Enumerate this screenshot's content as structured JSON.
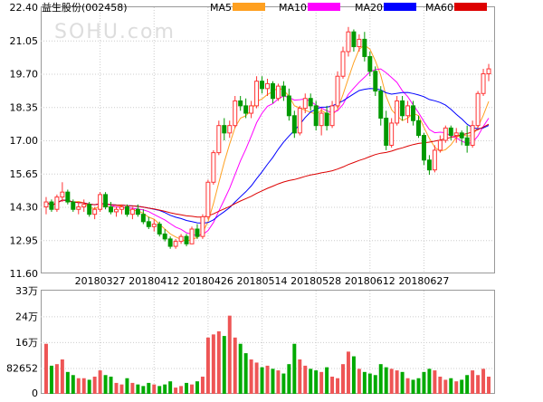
{
  "chart_data": {
    "type": "candlestick",
    "title": "益生股份(002458)",
    "watermark": "SOHU.com",
    "price_axis": {
      "ylim": [
        11.6,
        22.4
      ],
      "tick_labels": [
        "22.40",
        "21.05",
        "19.70",
        "18.35",
        "17.00",
        "15.65",
        "14.30",
        "12.95",
        "11.60"
      ]
    },
    "volume_axis": {
      "ylim": [
        0,
        330000
      ],
      "tick_labels": [
        "33万",
        "24万",
        "16万",
        "82652",
        "0"
      ],
      "tick_values": [
        330000,
        247956,
        165304,
        82652,
        0
      ]
    },
    "x_tick_labels": [
      {
        "label": "20180327",
        "index": 10
      },
      {
        "label": "20180412",
        "index": 20
      },
      {
        "label": "20180426",
        "index": 30
      },
      {
        "label": "20180514",
        "index": 40
      },
      {
        "label": "20180528",
        "index": 50
      },
      {
        "label": "20180612",
        "index": 60
      },
      {
        "label": "20180627",
        "index": 70
      }
    ],
    "legend": [
      {
        "name": "MA5",
        "color": "#ffa020"
      },
      {
        "name": "MA10",
        "color": "#ff00ff"
      },
      {
        "name": "MA20",
        "color": "#0000ff"
      },
      {
        "name": "MA60",
        "color": "#dd0000"
      }
    ],
    "colors": {
      "up": "#ff3333",
      "down": "#009900",
      "volume_up": "#ee5555",
      "volume_down": "#00aa00",
      "grid": "#cccccc"
    },
    "candles": [
      [
        14.3,
        14.7,
        14.0,
        14.5
      ],
      [
        14.5,
        14.6,
        14.1,
        14.2
      ],
      [
        14.2,
        14.8,
        14.1,
        14.7
      ],
      [
        14.7,
        15.3,
        14.5,
        14.9
      ],
      [
        14.9,
        15.0,
        14.4,
        14.5
      ],
      [
        14.5,
        14.6,
        14.1,
        14.2
      ],
      [
        14.2,
        14.5,
        14.0,
        14.3
      ],
      [
        14.3,
        14.6,
        14.1,
        14.4
      ],
      [
        14.4,
        14.5,
        13.9,
        14.0
      ],
      [
        14.0,
        14.3,
        13.8,
        14.2
      ],
      [
        14.2,
        14.9,
        14.1,
        14.8
      ],
      [
        14.8,
        14.9,
        14.2,
        14.3
      ],
      [
        14.3,
        14.5,
        14.0,
        14.1
      ],
      [
        14.1,
        14.3,
        13.9,
        14.2
      ],
      [
        14.2,
        14.4,
        14.0,
        14.3
      ],
      [
        14.3,
        14.4,
        13.9,
        14.0
      ],
      [
        14.0,
        14.3,
        13.8,
        14.2
      ],
      [
        14.2,
        14.4,
        13.9,
        14.0
      ],
      [
        14.0,
        14.2,
        13.6,
        13.7
      ],
      [
        13.7,
        13.9,
        13.4,
        13.5
      ],
      [
        13.5,
        13.8,
        13.3,
        13.6
      ],
      [
        13.6,
        13.7,
        13.1,
        13.2
      ],
      [
        13.2,
        13.4,
        12.9,
        13.0
      ],
      [
        13.0,
        13.1,
        12.6,
        12.7
      ],
      [
        12.7,
        13.0,
        12.6,
        12.9
      ],
      [
        12.9,
        13.2,
        12.8,
        13.1
      ],
      [
        13.1,
        13.2,
        12.7,
        12.8
      ],
      [
        12.8,
        13.5,
        12.8,
        13.4
      ],
      [
        13.4,
        13.6,
        13.0,
        13.1
      ],
      [
        13.1,
        14.0,
        13.0,
        13.9
      ],
      [
        13.9,
        15.4,
        13.8,
        15.3
      ],
      [
        15.3,
        16.6,
        15.2,
        16.5
      ],
      [
        16.5,
        17.8,
        16.4,
        17.6
      ],
      [
        17.6,
        17.9,
        17.0,
        17.3
      ],
      [
        17.3,
        17.8,
        17.1,
        17.6
      ],
      [
        17.6,
        18.8,
        17.5,
        18.6
      ],
      [
        18.6,
        18.8,
        18.2,
        18.4
      ],
      [
        18.4,
        18.7,
        17.9,
        18.1
      ],
      [
        18.1,
        18.6,
        17.9,
        18.4
      ],
      [
        18.4,
        19.6,
        18.3,
        19.4
      ],
      [
        19.4,
        19.6,
        18.9,
        19.1
      ],
      [
        19.1,
        19.5,
        18.8,
        19.3
      ],
      [
        19.3,
        19.4,
        18.5,
        18.7
      ],
      [
        18.7,
        19.3,
        18.6,
        19.2
      ],
      [
        19.2,
        19.4,
        18.6,
        18.8
      ],
      [
        18.8,
        19.1,
        17.8,
        18.0
      ],
      [
        18.0,
        18.2,
        17.1,
        17.3
      ],
      [
        17.3,
        18.4,
        17.2,
        18.3
      ],
      [
        18.3,
        18.9,
        18.1,
        18.7
      ],
      [
        18.7,
        18.9,
        18.2,
        18.4
      ],
      [
        18.4,
        18.6,
        17.4,
        17.6
      ],
      [
        17.6,
        18.3,
        17.2,
        18.1
      ],
      [
        18.1,
        18.4,
        17.4,
        17.6
      ],
      [
        17.6,
        18.6,
        17.5,
        18.4
      ],
      [
        18.4,
        19.8,
        18.3,
        19.6
      ],
      [
        19.6,
        20.8,
        19.5,
        20.6
      ],
      [
        20.6,
        21.6,
        20.4,
        21.4
      ],
      [
        21.4,
        21.5,
        20.6,
        20.8
      ],
      [
        20.8,
        21.3,
        20.6,
        21.1
      ],
      [
        21.1,
        21.4,
        20.2,
        20.4
      ],
      [
        20.4,
        20.6,
        19.6,
        19.8
      ],
      [
        19.8,
        20.0,
        18.8,
        19.0
      ],
      [
        19.0,
        19.2,
        17.6,
        17.9
      ],
      [
        17.9,
        18.2,
        16.6,
        16.8
      ],
      [
        16.8,
        17.9,
        16.7,
        17.7
      ],
      [
        17.7,
        18.8,
        17.6,
        18.6
      ],
      [
        18.6,
        18.8,
        17.8,
        18.0
      ],
      [
        18.0,
        18.6,
        17.7,
        18.4
      ],
      [
        18.4,
        18.6,
        17.6,
        17.8
      ],
      [
        17.8,
        18.0,
        17.1,
        17.2
      ],
      [
        17.2,
        17.3,
        16.0,
        16.2
      ],
      [
        16.2,
        16.4,
        15.6,
        15.8
      ],
      [
        15.8,
        16.8,
        15.7,
        16.6
      ],
      [
        16.6,
        17.2,
        16.5,
        17.0
      ],
      [
        17.0,
        17.6,
        16.9,
        17.5
      ],
      [
        17.5,
        17.6,
        17.0,
        17.2
      ],
      [
        17.2,
        17.5,
        16.9,
        17.3
      ],
      [
        17.3,
        17.4,
        16.8,
        17.1
      ],
      [
        17.1,
        17.6,
        16.5,
        16.8
      ],
      [
        16.8,
        17.8,
        16.7,
        17.6
      ],
      [
        17.6,
        19.0,
        17.5,
        18.9
      ],
      [
        18.9,
        19.9,
        18.8,
        19.7
      ],
      [
        19.7,
        20.1,
        19.4,
        19.9
      ]
    ],
    "volumes": [
      160000,
      90000,
      95000,
      110000,
      70000,
      60000,
      50000,
      50000,
      45000,
      55000,
      75000,
      60000,
      55000,
      35000,
      30000,
      50000,
      35000,
      30000,
      25000,
      35000,
      30000,
      25000,
      30000,
      40000,
      20000,
      25000,
      35000,
      30000,
      40000,
      55000,
      180000,
      190000,
      200000,
      185000,
      250000,
      180000,
      160000,
      130000,
      110000,
      100000,
      85000,
      90000,
      80000,
      75000,
      65000,
      95000,
      160000,
      110000,
      90000,
      80000,
      75000,
      70000,
      85000,
      55000,
      50000,
      95000,
      135000,
      120000,
      80000,
      70000,
      65000,
      60000,
      95000,
      85000,
      80000,
      75000,
      70000,
      50000,
      45000,
      50000,
      70000,
      80000,
      75000,
      55000,
      45000,
      50000,
      40000,
      45000,
      60000,
      75000,
      60000,
      80000,
      55000
    ]
  }
}
